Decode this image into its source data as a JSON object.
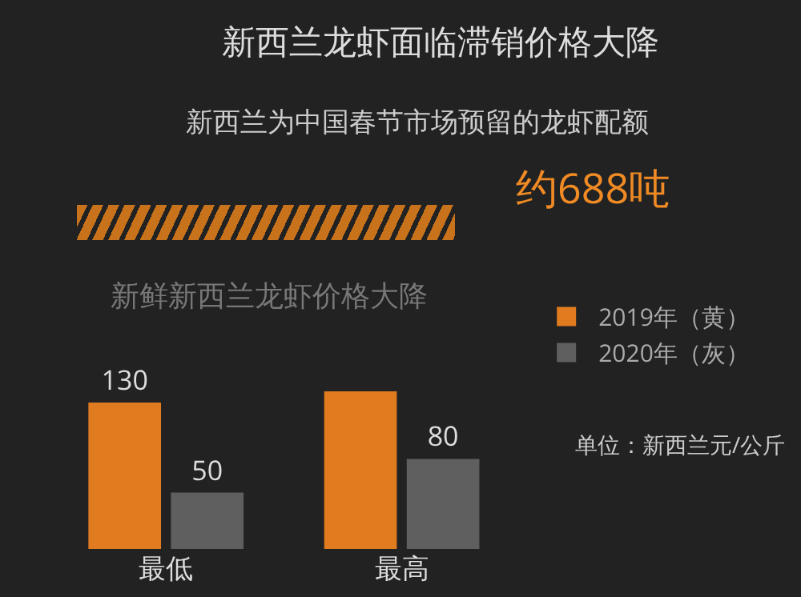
{
  "chart_data": {
    "type": "bar",
    "title": "新西兰龙虾面临滞销价格大降",
    "subtitle": "新西兰为中国春节市场预留的龙虾配额",
    "annotations": [
      "约688吨",
      "新鲜新西兰龙虾价格大降",
      "单位：新西兰元/公斤"
    ],
    "categories": [
      "最低",
      "最高"
    ],
    "series": [
      {
        "name": "2019年（黄）",
        "color": "#e07b20",
        "values": [
          130,
          140
        ],
        "value_labels": [
          "130",
          null
        ]
      },
      {
        "name": "2020年（灰）",
        "color": "#5f5f5f",
        "values": [
          50,
          80
        ],
        "value_labels": [
          "50",
          "80"
        ]
      }
    ],
    "legend": "top right"
  }
}
